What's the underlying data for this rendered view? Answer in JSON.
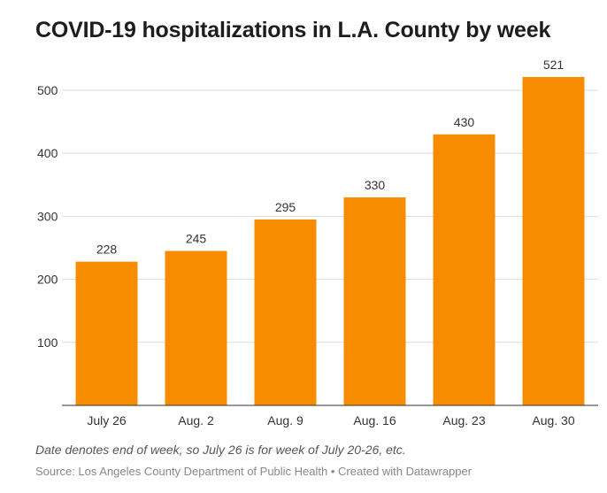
{
  "title": "COVID-19 hospitalizations in L.A. County by week",
  "chart_data": {
    "type": "bar",
    "title": "COVID-19 hospitalizations in L.A. County by week",
    "categories": [
      "July 26",
      "Aug. 2",
      "Aug. 9",
      "Aug. 16",
      "Aug. 23",
      "Aug. 30"
    ],
    "values": [
      228,
      245,
      295,
      330,
      430,
      521
    ],
    "data_labels": [
      "228",
      "245",
      "295",
      "330",
      "430",
      "521"
    ],
    "xlabel": "",
    "ylabel": "",
    "ylim": [
      0,
      521
    ],
    "yticks": [
      100,
      200,
      300,
      400,
      500
    ],
    "ytick_labels": [
      "100",
      "200",
      "300",
      "400",
      "500"
    ],
    "grid": true,
    "legend": "none",
    "bar_color": "#f78c00"
  },
  "footer": {
    "note": "Date denotes end of week, so July 26 is for week of July 20-26, etc.",
    "source_label": "Source: ",
    "source": "Los Angeles County Department of Public Health",
    "separator": " • ",
    "credit": "Created with Datawrapper"
  }
}
